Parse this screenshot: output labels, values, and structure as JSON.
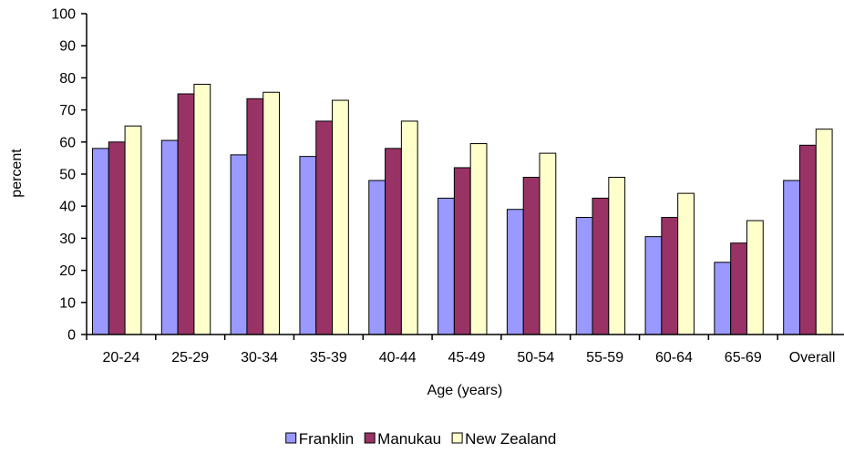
{
  "chart_data": {
    "type": "bar",
    "title": "",
    "xlabel": "Age (years)",
    "ylabel": "percent",
    "ylim": [
      0,
      100
    ],
    "yticks": [
      0,
      10,
      20,
      30,
      40,
      50,
      60,
      70,
      80,
      90,
      100
    ],
    "grid": false,
    "legend_position": "bottom",
    "categories": [
      "20-24",
      "25-29",
      "30-34",
      "35-39",
      "40-44",
      "45-49",
      "50-54",
      "55-59",
      "60-64",
      "65-69",
      "Overall"
    ],
    "series": [
      {
        "name": "Franklin",
        "color": "#9999ff",
        "values": [
          58,
          60.5,
          56,
          55.5,
          48,
          42.5,
          39,
          36.5,
          30.5,
          22.5,
          48
        ]
      },
      {
        "name": "Manukau",
        "color": "#993366",
        "values": [
          60,
          75,
          73.5,
          66.5,
          58,
          52,
          49,
          42.5,
          36.5,
          28.5,
          59
        ]
      },
      {
        "name": "New Zealand",
        "color": "#ffffcc",
        "values": [
          65,
          78,
          75.5,
          73,
          66.5,
          59.5,
          56.5,
          49,
          44,
          35.5,
          64
        ]
      }
    ]
  }
}
